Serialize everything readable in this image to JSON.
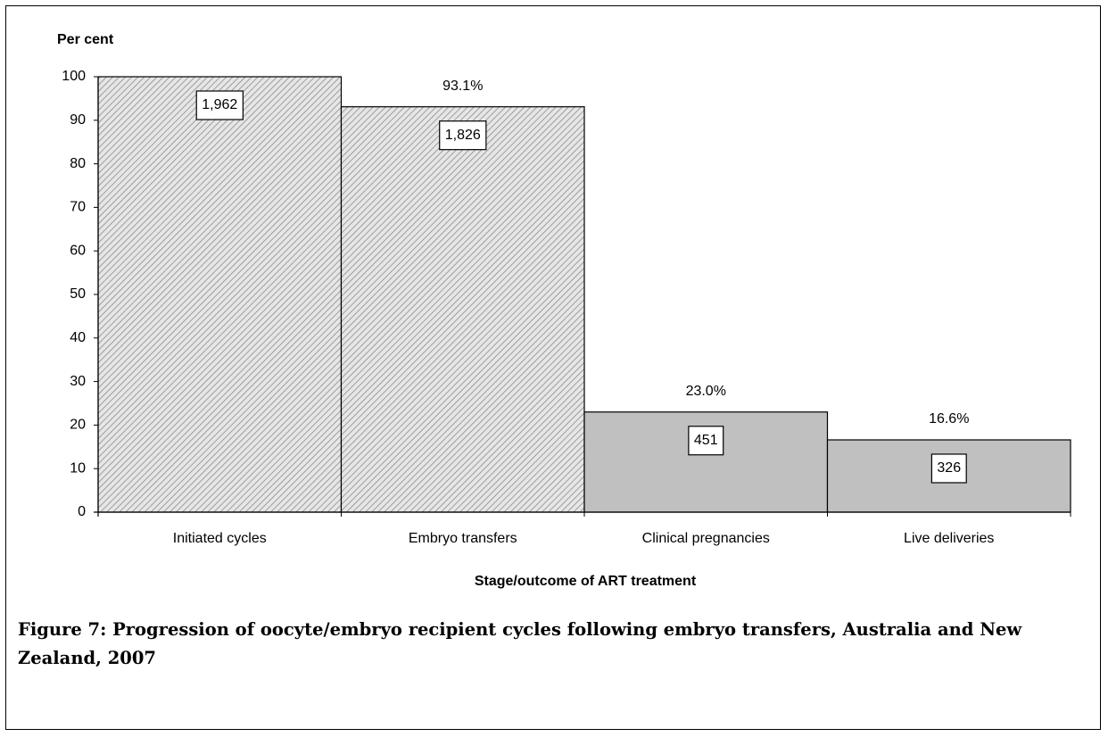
{
  "chart_data": {
    "type": "bar",
    "y_axis_label": "Per cent",
    "x_axis_label": "Stage/outcome of ART treatment",
    "caption": "Figure 7: Progression of oocyte/embryo recipient cycles following embryo transfers, Australia and New Zealand, 2007",
    "categories": [
      "Initiated cycles",
      "Embryo transfers",
      "Clinical pregnancies",
      "Live deliveries"
    ],
    "values": [
      100,
      93.1,
      23.0,
      16.6
    ],
    "value_labels": [
      null,
      "93.1%",
      "23.0%",
      "16.6%"
    ],
    "counts": [
      {
        "value": 1962,
        "label": "1,962"
      },
      {
        "value": 1826,
        "label": "1,826"
      },
      {
        "value": 451,
        "label": "451"
      },
      {
        "value": 326,
        "label": "326"
      }
    ],
    "colors": [
      "#dcdcdc",
      "#dcdcdc",
      "#c0c0c0",
      "#c0c0c0"
    ],
    "hatched": [
      true,
      true,
      false,
      false
    ],
    "ylim": [
      0,
      100
    ],
    "yticks": [
      0,
      10,
      20,
      30,
      40,
      50,
      60,
      70,
      80,
      90,
      100
    ],
    "grid": false
  }
}
